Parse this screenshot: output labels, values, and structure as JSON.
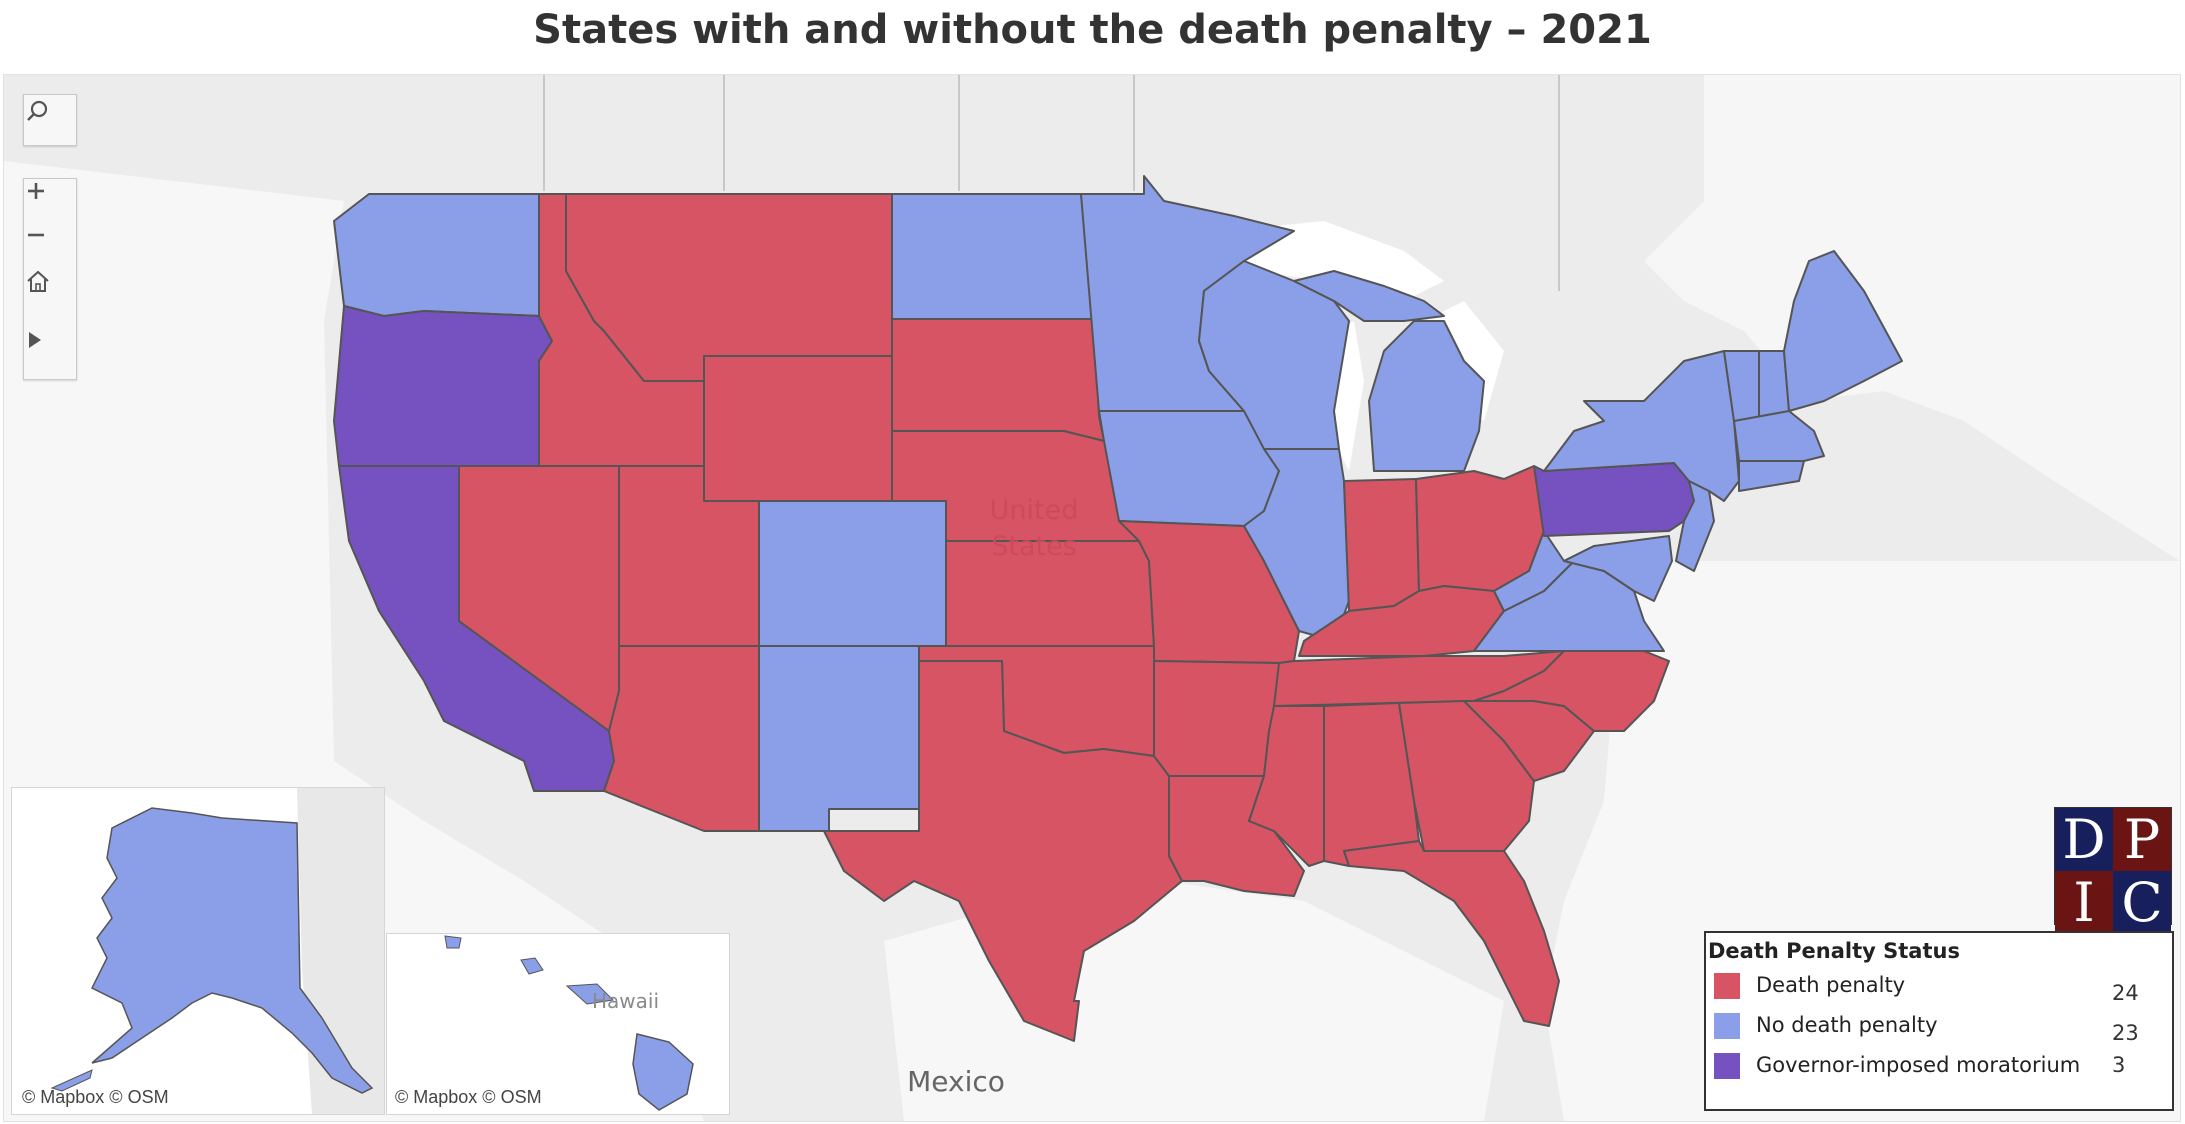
{
  "title": "States with and without the death penalty – 2021",
  "colors": {
    "death_penalty": "#d65463",
    "no_death_penalty": "#8a9fe8",
    "moratorium": "#7652c0",
    "state_border": "#555555",
    "land": "#e8e8e8",
    "water": "#ffffff"
  },
  "map": {
    "country_label": "United States",
    "country_label_line1": "United",
    "country_label_line2": "States",
    "mexico_label": "Mexico",
    "hawaii_label": "Hawaii",
    "attribution_main": "© Mapbox  © OSM",
    "attribution_alaska": "© Mapbox  © OSM",
    "attribution_hawaii": "© Mapbox  © OSM"
  },
  "controls": {
    "search": "search-icon",
    "zoom_in": "plus-icon",
    "zoom_out": "minus-icon",
    "home": "home-icon",
    "expand": "play-icon"
  },
  "legend": {
    "title": "Death Penalty Status",
    "items": [
      {
        "label": "Death penalty",
        "count": "24",
        "color": "#d65463"
      },
      {
        "label": "No death penalty",
        "count": "23",
        "color": "#8a9fe8"
      },
      {
        "label": "Governor-imposed moratorium",
        "count": "3",
        "color": "#7652c0"
      }
    ]
  },
  "logo": {
    "letters": [
      "D",
      "P",
      "I",
      "C"
    ],
    "colors": [
      "#17205c",
      "#6b1414",
      "#6b1414",
      "#17205c"
    ]
  }
}
